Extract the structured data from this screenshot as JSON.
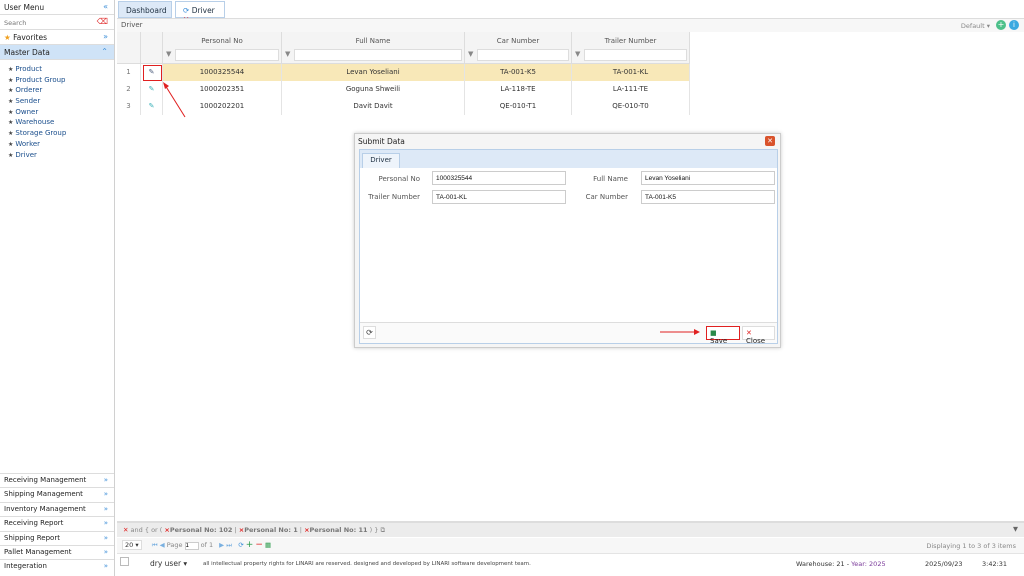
{
  "sidebar": {
    "title": "User Menu",
    "search_placeholder": "Search",
    "favorites": "Favorites",
    "master_data": "Master Data",
    "items": [
      "Product",
      "Product Group",
      "Orderer",
      "Sender",
      "Owner",
      "Warehouse",
      "Storage Group",
      "Worker",
      "Driver"
    ],
    "sections": [
      "Receiving Management",
      "Shipping Management",
      "Inventory Management",
      "Receiving Report",
      "Shipping Report",
      "Pallet Management",
      "Integeration"
    ]
  },
  "tabs": [
    {
      "label": "Dashboard"
    },
    {
      "label": "Driver"
    }
  ],
  "panel": {
    "title": "Driver",
    "view": "Default"
  },
  "grid": {
    "columns": [
      "Personal No",
      "Full Name",
      "Car Number",
      "Trailer Number"
    ],
    "rows": [
      {
        "n": "1",
        "personal_no": "1000325544",
        "full_name": "Levan Yoseliani",
        "car": "TA-001-K5",
        "trailer": "TA-001-KL"
      },
      {
        "n": "2",
        "personal_no": "1000202351",
        "full_name": "Goguna Shweili",
        "car": "LA-118-TE",
        "trailer": "LA-111-TE"
      },
      {
        "n": "3",
        "personal_no": "1000202201",
        "full_name": "Davit Davit",
        "car": "QE-010-T1",
        "trailer": "QE-010-T0"
      }
    ]
  },
  "dialog": {
    "title": "Submit Data",
    "tab": "Driver",
    "fields": {
      "personal_no_label": "Personal No",
      "personal_no": "1000325544",
      "full_name_label": "Full Name",
      "full_name": "Levan Yoseliani",
      "trailer_label": "Trailer Number",
      "trailer": "TA-001-KL",
      "car_label": "Car Number",
      "car": "TA-001-K5"
    },
    "save": "Save",
    "close": "Close"
  },
  "filter": {
    "and": "and",
    "or": "or",
    "open_brace": "{",
    "open_paren": "(",
    "close": ") }",
    "chips": [
      "Personal No: 102",
      "Personal No: 1",
      "Personal No: 11"
    ]
  },
  "pager": {
    "size": "20",
    "page_label": "Page",
    "page": "1",
    "of": "of 1",
    "display": "Displaying 1 to 3 of 3 items"
  },
  "footer": {
    "user": "dry user",
    "copyright": "all intellectual property rights for LINARI are reserved. designed and developed by LINARI software development team.",
    "warehouse": "Warehouse: 21 - ",
    "year": "Year: 2025",
    "date": "2025/09/23",
    "time": "3:42:31"
  },
  "colors": {
    "selected_row": "#f8e8b8",
    "accent": "#3b8ed8",
    "annotation": "#e02020"
  }
}
